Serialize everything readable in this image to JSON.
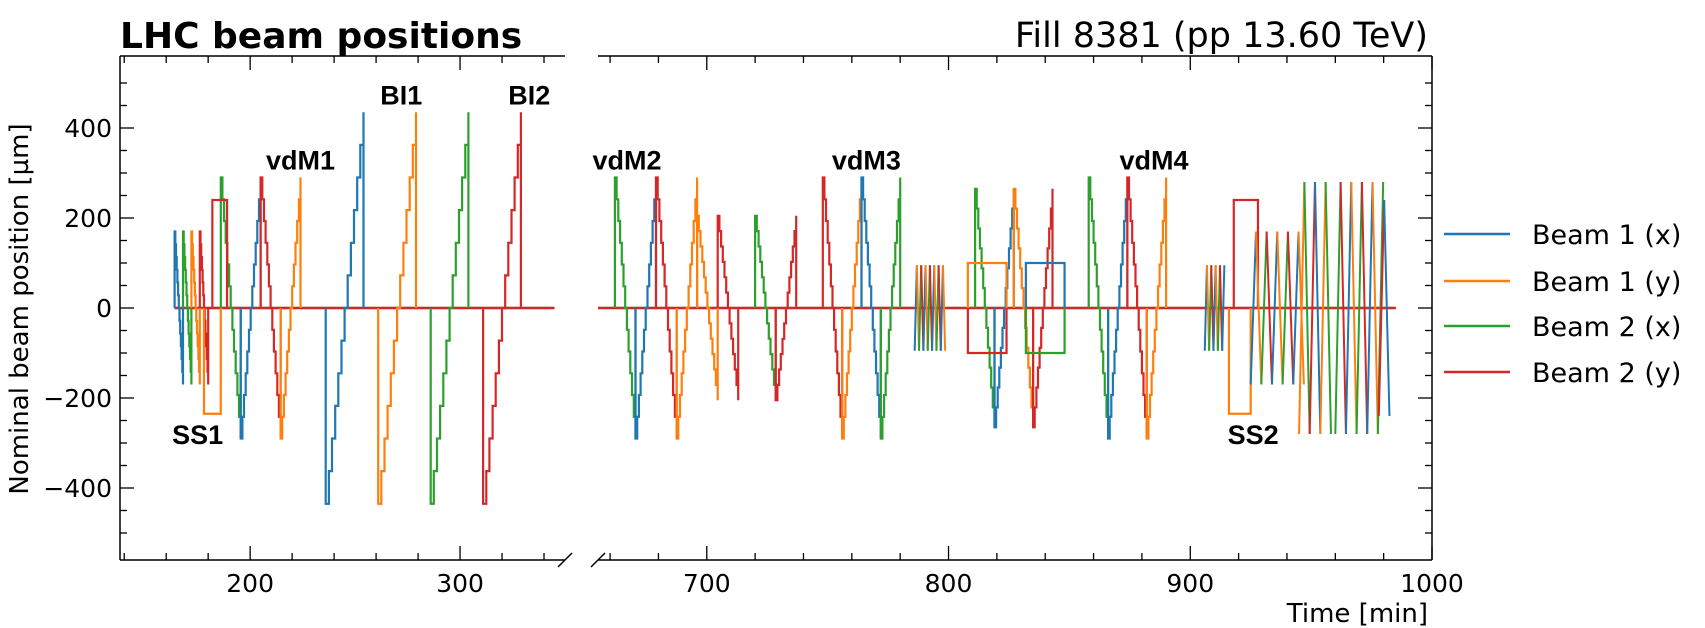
{
  "chart_data": {
    "type": "line",
    "title": "LHC beam positions",
    "subtitle": "Fill 8381 (pp 13.60 TeV)",
    "xlabel": "Time [min]",
    "ylabel": "Nominal beam position [µm]",
    "ylim": [
      -560,
      560
    ],
    "yticks": [
      -400,
      -200,
      0,
      200,
      400
    ],
    "ytick_labels": [
      "−400",
      "−200",
      "0",
      "200",
      "400"
    ],
    "broken_x_axis": true,
    "x_segments": [
      {
        "xlim": [
          138,
          350
        ],
        "ticks": [
          200,
          300
        ],
        "tick_labels": [
          "200",
          "300"
        ]
      },
      {
        "xlim": [
          655,
          1000
        ],
        "ticks": [
          700,
          800,
          900,
          1000
        ],
        "tick_labels": [
          "700",
          "800",
          "900",
          "1000"
        ]
      }
    ],
    "legend_position": "right",
    "series": [
      {
        "name": "Beam 1 (x)",
        "color": "#1f77b4"
      },
      {
        "name": "Beam 1 (y)",
        "color": "#ff7f0e"
      },
      {
        "name": "Beam 2 (x)",
        "color": "#2ca02c"
      },
      {
        "name": "Beam 2 (y)",
        "color": "#d62728"
      }
    ],
    "annotations": [
      {
        "text": "SS1",
        "x": 175,
        "y": -280
      },
      {
        "text": "vdM1",
        "x": 224,
        "y": 330
      },
      {
        "text": "BI1",
        "x": 272,
        "y": 475
      },
      {
        "text": "BI2",
        "x": 333,
        "y": 475
      },
      {
        "text": "vdM2",
        "x": 667,
        "y": 330
      },
      {
        "text": "vdM3",
        "x": 766,
        "y": 330
      },
      {
        "text": "vdM4",
        "x": 885,
        "y": 330
      },
      {
        "text": "SS2",
        "x": 926,
        "y": -280
      }
    ],
    "scans": [
      {
        "segment": 0,
        "start": 164,
        "dur": 4,
        "sweeps": [
          {
            "s": 0,
            "f": 170,
            "t": -170
          },
          {
            "s": 2,
            "f": 170,
            "t": -170
          },
          {
            "s": 1,
            "f": 170,
            "t": -170
          },
          {
            "s": 3,
            "f": 170,
            "t": -170
          }
        ]
      },
      {
        "segment": 0,
        "start": 186,
        "dur": 9.5,
        "sweeps": [
          {
            "s": 2,
            "f": 290,
            "t": -290
          },
          {
            "s": 0,
            "f": -290,
            "t": 290
          },
          {
            "s": 3,
            "f": 290,
            "t": -290
          },
          {
            "s": 1,
            "f": -290,
            "t": 290
          }
        ]
      },
      {
        "segment": 0,
        "start": 236,
        "dur": 18,
        "sweeps": [
          {
            "s": 0,
            "f": -435,
            "t": 435
          }
        ]
      },
      {
        "segment": 0,
        "start": 261,
        "dur": 18,
        "sweeps": [
          {
            "s": 1,
            "f": -435,
            "t": 435
          }
        ]
      },
      {
        "segment": 0,
        "start": 286,
        "dur": 18,
        "sweeps": [
          {
            "s": 2,
            "f": -435,
            "t": 435
          }
        ]
      },
      {
        "segment": 0,
        "start": 311,
        "dur": 18,
        "sweeps": [
          {
            "s": 3,
            "f": -435,
            "t": 435
          }
        ]
      },
      {
        "segment": 1,
        "start": 662,
        "dur": 8.5,
        "sweeps": [
          {
            "s": 2,
            "f": 290,
            "t": -290
          },
          {
            "s": 0,
            "f": -290,
            "t": 290
          },
          {
            "s": 3,
            "f": 290,
            "t": -290
          },
          {
            "s": 1,
            "f": -290,
            "t": 290
          }
        ]
      },
      {
        "segment": 1,
        "start": 696,
        "dur": 8.5,
        "sweeps": [
          {
            "s": 1,
            "f": 205,
            "t": -205
          },
          {
            "s": 3,
            "f": 205,
            "t": -205
          }
        ]
      },
      {
        "segment": 1,
        "start": 720,
        "dur": 8.5,
        "sweeps": [
          {
            "s": 2,
            "f": 205,
            "t": -205
          },
          {
            "s": 3,
            "f": -205,
            "t": 205
          }
        ]
      },
      {
        "segment": 1,
        "start": 748,
        "dur": 8,
        "sweeps": [
          {
            "s": 3,
            "f": 290,
            "t": -290
          },
          {
            "s": 1,
            "f": -290,
            "t": 290
          },
          {
            "s": 0,
            "f": 290,
            "t": -290
          },
          {
            "s": 2,
            "f": -290,
            "t": 290
          }
        ]
      },
      {
        "segment": 1,
        "start": 811,
        "dur": 8,
        "sweeps": [
          {
            "s": 2,
            "f": 265,
            "t": -265
          },
          {
            "s": 0,
            "f": -265,
            "t": 265
          },
          {
            "s": 1,
            "f": 265,
            "t": -265
          },
          {
            "s": 3,
            "f": -265,
            "t": 265
          }
        ]
      },
      {
        "segment": 1,
        "start": 858,
        "dur": 8,
        "sweeps": [
          {
            "s": 2,
            "f": 290,
            "t": -290
          },
          {
            "s": 0,
            "f": -290,
            "t": 290
          },
          {
            "s": 3,
            "f": 290,
            "t": -290
          },
          {
            "s": 1,
            "f": -290,
            "t": 290
          }
        ]
      }
    ]
  },
  "legend": {
    "items": [
      "Beam 1 (x)",
      "Beam 1 (y)",
      "Beam 2 (x)",
      "Beam 2 (y)"
    ]
  }
}
